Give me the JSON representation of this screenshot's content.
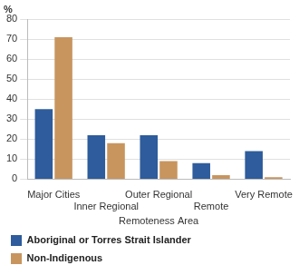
{
  "chart_data": {
    "type": "bar",
    "y_label": "%",
    "x_label": "Remoteness Area",
    "categories": [
      "Major Cities",
      "Inner Regional",
      "Outer Regional",
      "Remote",
      "Very Remote"
    ],
    "series": [
      {
        "name": "Aboriginal or Torres Strait Islander",
        "color": "#2e5c9c",
        "values": [
          35,
          22,
          22,
          8,
          14
        ]
      },
      {
        "name": "Non-Indigenous",
        "color": "#c8955f",
        "values": [
          71,
          18,
          9,
          2,
          1
        ]
      }
    ],
    "ylim": [
      0,
      80
    ],
    "yticks": [
      0,
      10,
      20,
      30,
      40,
      50,
      60,
      70,
      80
    ],
    "grid": true,
    "legend": "bottom"
  }
}
